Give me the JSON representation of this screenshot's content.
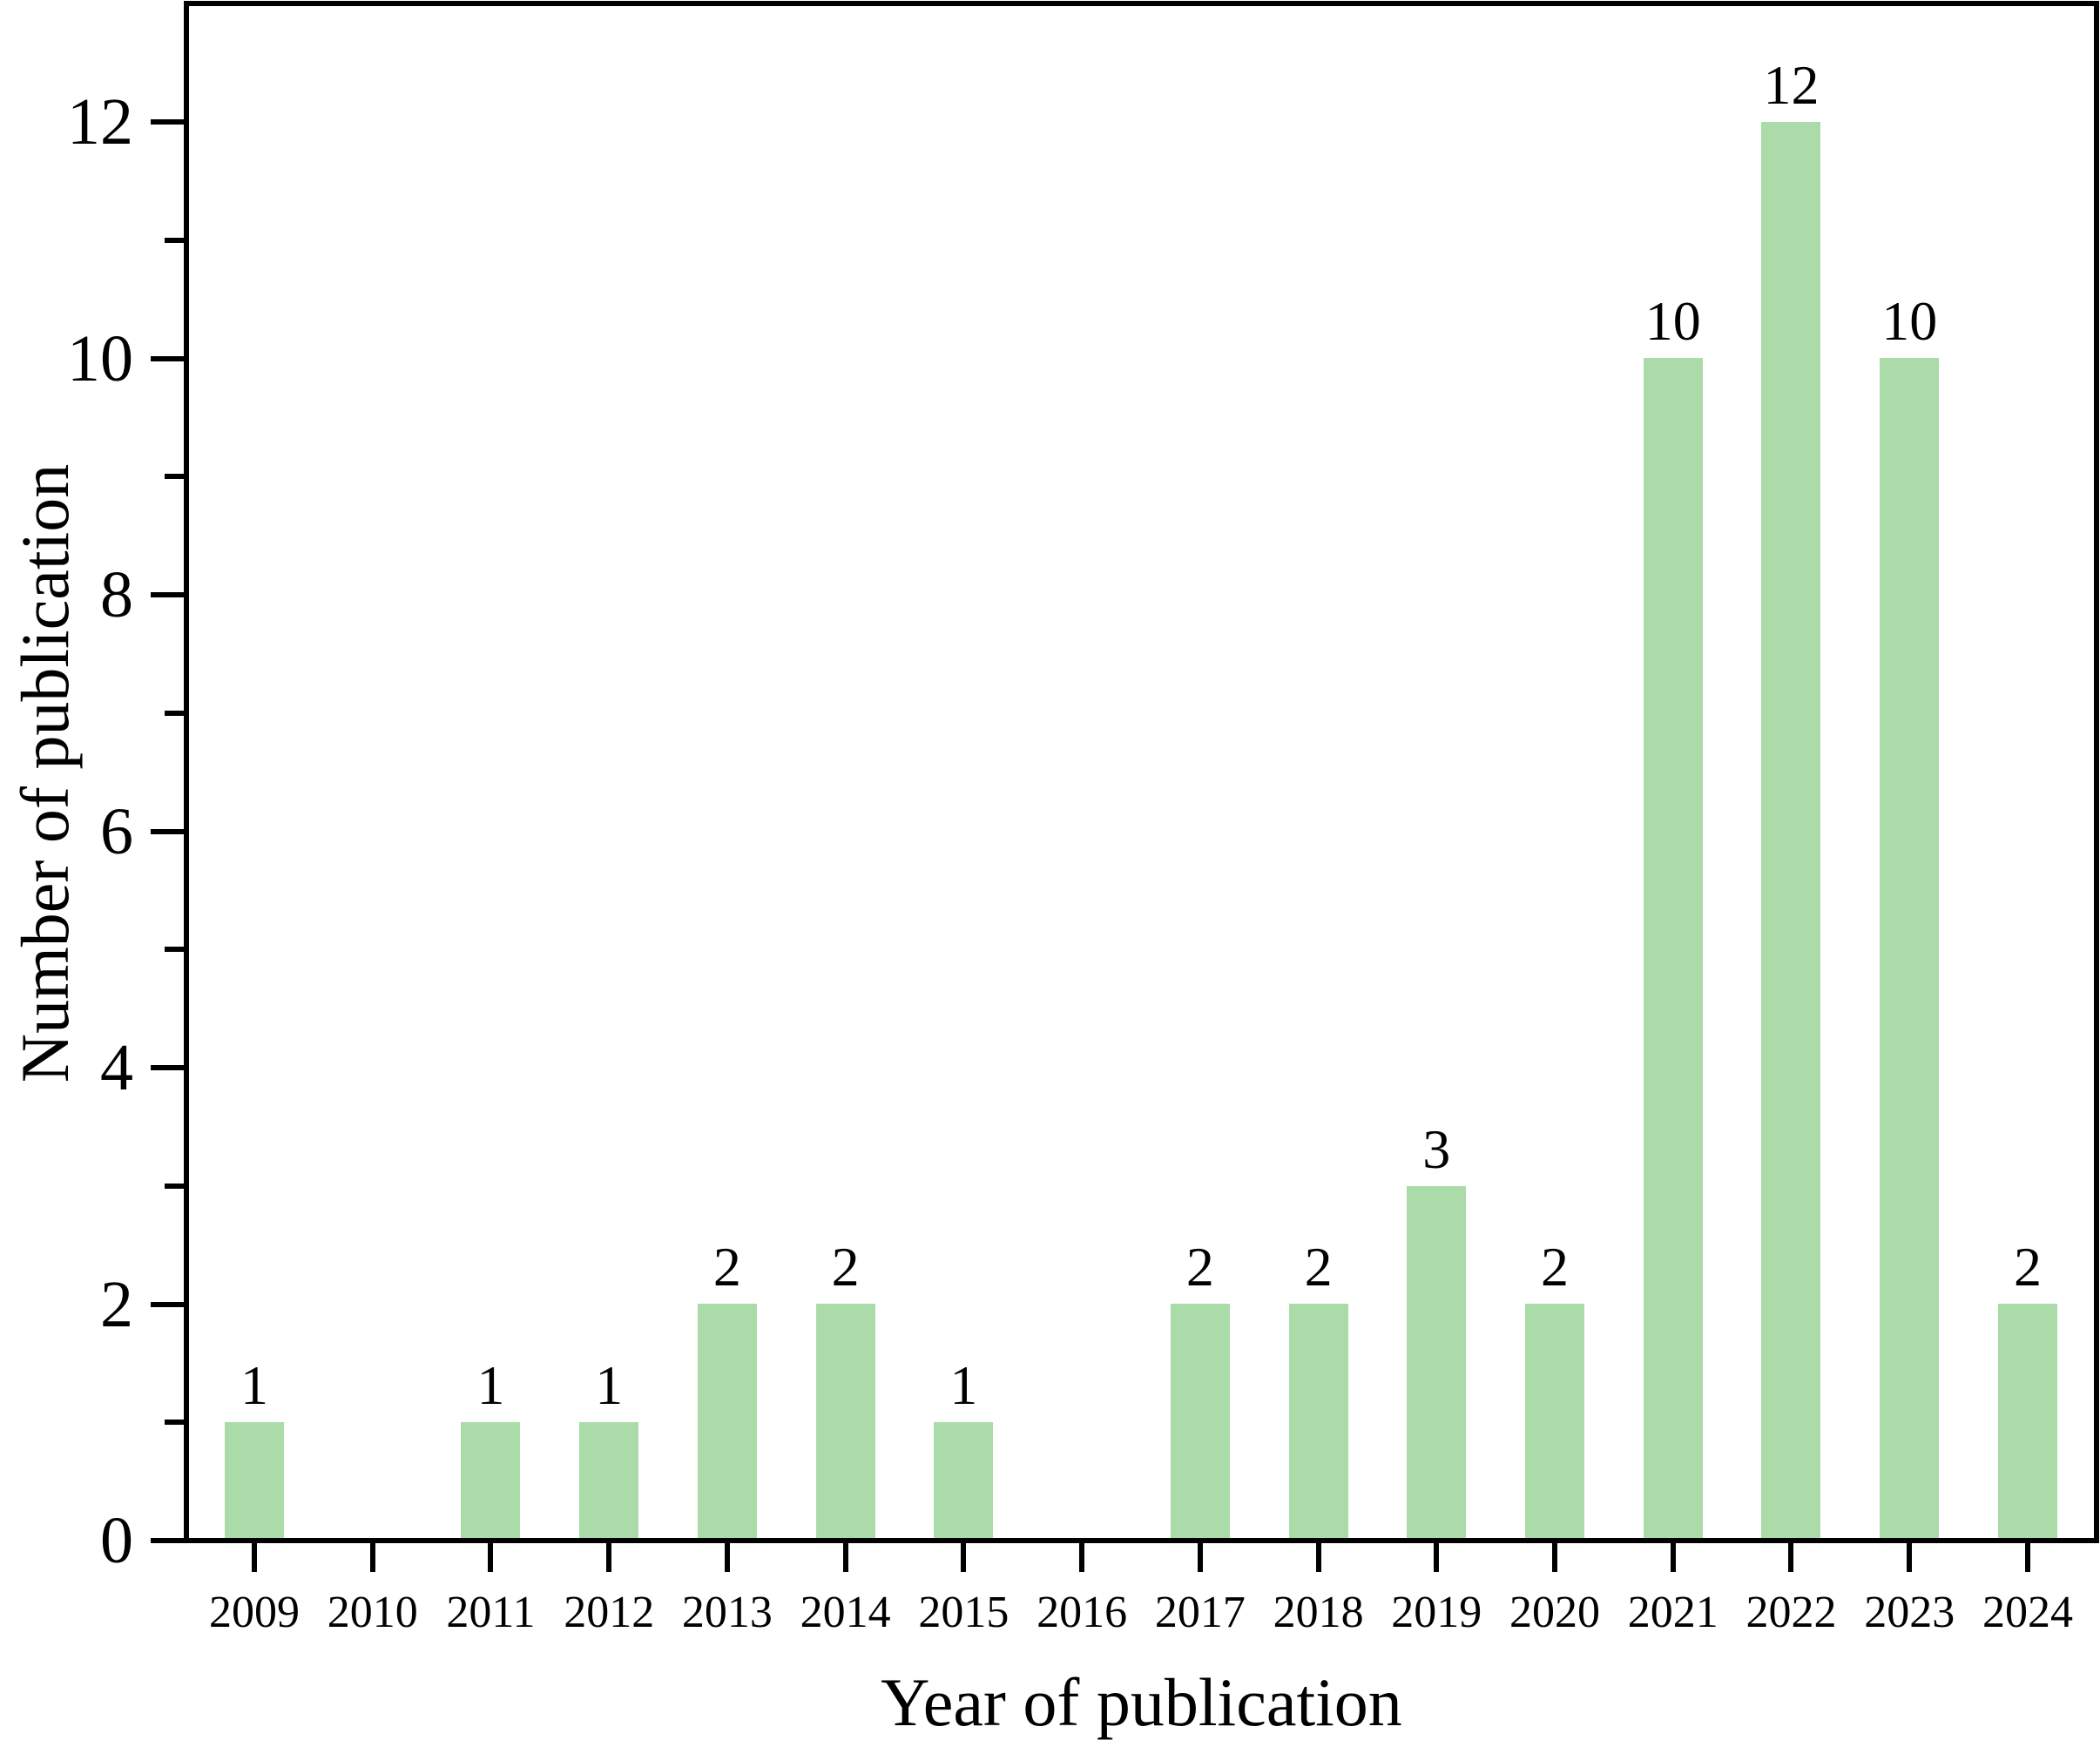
{
  "chart_data": {
    "type": "bar",
    "title": "",
    "categories": [
      "2009",
      "2010",
      "2011",
      "2012",
      "2013",
      "2014",
      "2015",
      "2016",
      "2017",
      "2018",
      "2019",
      "2020",
      "2021",
      "2022",
      "2023",
      "2024"
    ],
    "values": [
      1,
      0,
      1,
      1,
      2,
      2,
      1,
      0,
      2,
      2,
      3,
      2,
      10,
      12,
      10,
      2
    ],
    "bar_value_labels": [
      "1",
      "",
      "1",
      "1",
      "2",
      "2",
      "1",
      "",
      "2",
      "2",
      "3",
      "2",
      "10",
      "12",
      "10",
      "2"
    ],
    "xlabel": "Year of publication",
    "ylabel": "Number of publication",
    "ylim": [
      0,
      13
    ],
    "yticks_major": [
      0,
      2,
      4,
      6,
      8,
      10,
      12
    ],
    "ytick_labels": [
      "0",
      "2",
      "4",
      "6",
      "8",
      "10",
      "12"
    ],
    "yticks_minor": [
      1,
      3,
      5,
      7,
      9,
      11
    ],
    "grid": false,
    "legend_position": "none",
    "bar_color": "#acdbaa",
    "axis_color": "#000000",
    "text_color": "#000000",
    "background_color": "#ffffff"
  }
}
